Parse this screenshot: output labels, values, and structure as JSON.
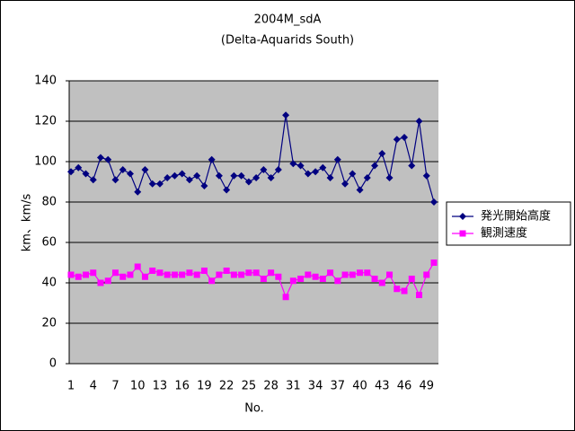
{
  "chart_data": {
    "type": "line",
    "title": "2004M_sdA",
    "subtitle": "(Delta-Aquarids South)",
    "x_label": "No.",
    "y_label": "km、km/s",
    "categories": [
      "1",
      null,
      null,
      "4",
      null,
      null,
      "7",
      null,
      null,
      "10",
      null,
      null,
      "13",
      null,
      null,
      "16",
      null,
      null,
      "19",
      null,
      null,
      "22",
      null,
      null,
      "25",
      null,
      null,
      "28",
      null,
      null,
      "31",
      null,
      null,
      "34",
      null,
      null,
      "37",
      null,
      null,
      "40",
      null,
      null,
      "43",
      null,
      null,
      "46",
      null,
      null,
      "49",
      null
    ],
    "series": [
      {
        "name": "発光開始高度",
        "color": "#000080",
        "marker": "diamond",
        "values": [
          95,
          97,
          94,
          91,
          102,
          101,
          91,
          96,
          94,
          85,
          96,
          89,
          89,
          92,
          93,
          94,
          91,
          93,
          88,
          101,
          93,
          86,
          93,
          93,
          90,
          92,
          96,
          92,
          96,
          123,
          99,
          98,
          94,
          95,
          97,
          92,
          101,
          89,
          94,
          86,
          92,
          98,
          104,
          92,
          111,
          112,
          98,
          120,
          93,
          80
        ]
      },
      {
        "name": "観測速度",
        "color": "#ff00ff",
        "marker": "square",
        "values": [
          44,
          43,
          44,
          45,
          40,
          41,
          45,
          43,
          44,
          48,
          43,
          46,
          45,
          44,
          44,
          44,
          45,
          44,
          46,
          41,
          44,
          46,
          44,
          44,
          45,
          45,
          42,
          45,
          43,
          33,
          41,
          42,
          44,
          43,
          42,
          45,
          41,
          44,
          44,
          45,
          45,
          42,
          40,
          44,
          37,
          36,
          42,
          34,
          44,
          50
        ]
      }
    ],
    "ylim": [
      0,
      140
    ],
    "yticks": [
      0,
      20,
      40,
      60,
      80,
      100,
      120,
      140
    ],
    "grid": true,
    "plot_background": "#c0c0c0",
    "legend": "right"
  }
}
